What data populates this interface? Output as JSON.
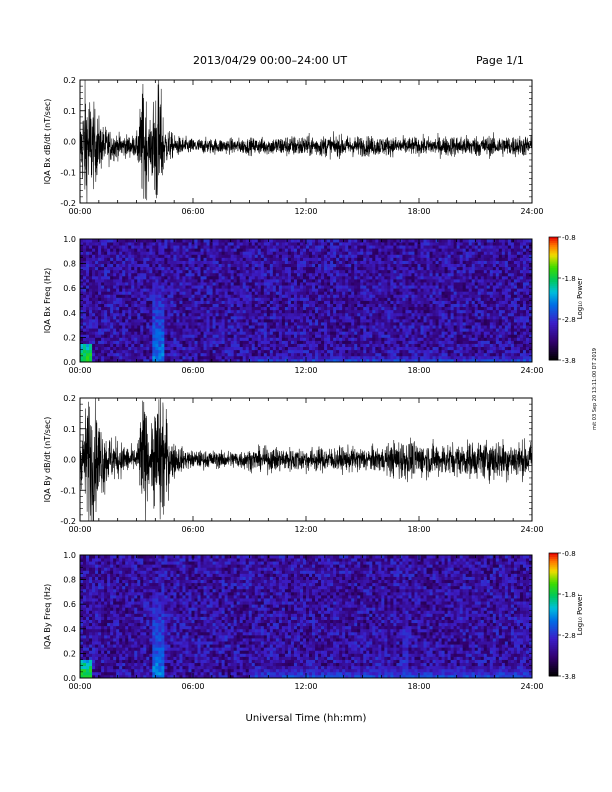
{
  "header": {
    "date_range": "2013/04/29  00:00–24:00 UT",
    "page": "Page 1/1"
  },
  "footer": {
    "stamp": "mit 03 Sep 20 13:11:00 DT 2019"
  },
  "chart_data": [
    {
      "type": "line",
      "title": "",
      "xlabel": "",
      "ylabel": "IQA Bx dB/dt (nT/sec)",
      "xlim": [
        "00:00",
        "24:00"
      ],
      "ylim": [
        -0.2,
        0.2
      ],
      "x_ticks": [
        "00:00",
        "06:00",
        "12:00",
        "18:00",
        "24:00"
      ],
      "y_ticks": [
        "-0.2",
        "-0.1",
        "0.0",
        "0.1",
        "0.2"
      ],
      "envelope": {
        "x_hours": [
          0.0,
          0.3,
          0.7,
          1.2,
          2.0,
          3.0,
          3.4,
          3.7,
          4.0,
          4.2,
          4.5,
          5.0,
          6.0,
          8.0,
          10.0,
          11.0,
          12.0,
          14.0,
          16.0,
          18.0,
          20.0,
          22.0,
          24.0
        ],
        "amplitude": [
          0.05,
          0.2,
          0.12,
          0.06,
          0.035,
          0.03,
          0.2,
          0.05,
          0.2,
          0.2,
          0.06,
          0.03,
          0.022,
          0.022,
          0.025,
          0.03,
          0.03,
          0.03,
          0.028,
          0.025,
          0.03,
          0.03,
          0.03
        ]
      },
      "baseline": -0.015
    },
    {
      "type": "heatmap",
      "title": "",
      "xlabel": "",
      "ylabel": "IQA Bx Freq (Hz)",
      "colorbar_label": "Log₁₀ Power",
      "colorbar_ticks": [
        "-0.8",
        "-1.8",
        "-2.8",
        "-3.8"
      ],
      "xlim": [
        "00:00",
        "24:00"
      ],
      "ylim": [
        0.0,
        1.0
      ],
      "x_ticks": [
        "00:00",
        "06:00",
        "12:00",
        "18:00",
        "24:00"
      ],
      "y_ticks": [
        "0.0",
        "0.2",
        "0.4",
        "0.6",
        "0.8",
        "1.0"
      ],
      "power_range": [
        -3.8,
        -0.8
      ],
      "features": [
        {
          "hours": [
            0.0,
            0.6
          ],
          "freq_max": 0.15,
          "power": -1.6
        },
        {
          "hours": [
            3.8,
            4.4
          ],
          "freq_max": 0.65,
          "power": -2.4
        },
        {
          "hours": [
            9.0,
            24.0
          ],
          "freq_max": 0.06,
          "power": -2.6
        }
      ]
    },
    {
      "type": "line",
      "title": "",
      "xlabel": "",
      "ylabel": "IQA By dB/dt (nT/sec)",
      "xlim": [
        "00:00",
        "24:00"
      ],
      "ylim": [
        -0.2,
        0.2
      ],
      "x_ticks": [
        "00:00",
        "06:00",
        "12:00",
        "18:00",
        "24:00"
      ],
      "y_ticks": [
        "-0.2",
        "-0.1",
        "0.0",
        "0.1",
        "0.2"
      ],
      "envelope": {
        "x_hours": [
          0.0,
          0.5,
          1.0,
          1.5,
          2.5,
          3.0,
          3.4,
          3.7,
          4.1,
          4.4,
          4.8,
          5.5,
          6.0,
          8.0,
          10.0,
          12.0,
          14.0,
          16.0,
          17.0,
          18.0,
          20.0,
          22.0,
          24.0
        ],
        "amplitude": [
          0.06,
          0.2,
          0.12,
          0.07,
          0.04,
          0.03,
          0.2,
          0.05,
          0.2,
          0.2,
          0.06,
          0.03,
          0.025,
          0.025,
          0.035,
          0.035,
          0.035,
          0.035,
          0.06,
          0.05,
          0.045,
          0.06,
          0.05
        ]
      },
      "baseline": 0.0
    },
    {
      "type": "heatmap",
      "title": "",
      "xlabel": "Universal Time (hh:mm)",
      "ylabel": "IQA By Freq (Hz)",
      "colorbar_label": "Log₁₀ Power",
      "colorbar_ticks": [
        "-0.8",
        "-1.8",
        "-2.8",
        "-3.8"
      ],
      "xlim": [
        "00:00",
        "24:00"
      ],
      "ylim": [
        0.0,
        1.0
      ],
      "x_ticks": [
        "00:00",
        "06:00",
        "12:00",
        "18:00",
        "24:00"
      ],
      "y_ticks": [
        "0.0",
        "0.2",
        "0.4",
        "0.6",
        "0.8",
        "1.0"
      ],
      "power_range": [
        -3.8,
        -0.8
      ],
      "features": [
        {
          "hours": [
            0.0,
            0.6
          ],
          "freq_max": 0.15,
          "power": -1.6
        },
        {
          "hours": [
            3.8,
            4.4
          ],
          "freq_max": 0.7,
          "power": -2.4
        },
        {
          "hours": [
            17.2,
            17.5
          ],
          "freq_max": 1.0,
          "power": -2.8
        },
        {
          "hours": [
            9.0,
            24.0
          ],
          "freq_max": 0.1,
          "power": -2.6
        }
      ]
    }
  ]
}
